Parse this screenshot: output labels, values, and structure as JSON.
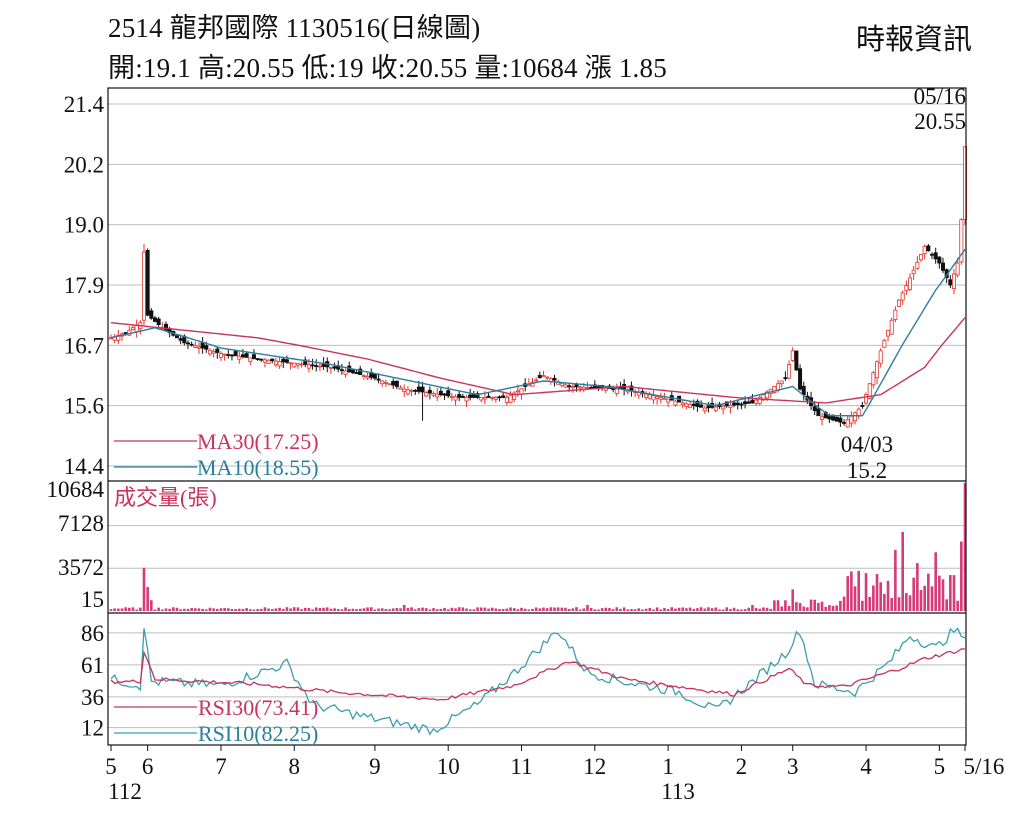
{
  "header": {
    "title": "2514  龍邦國際 1130516(日線圖)",
    "ohlc": "開:19.1 高:20.55 低:19 收:20.55 量:10684 漲 1.85",
    "source": "時報資訊"
  },
  "colors": {
    "up": "#e8332a",
    "down": "#111111",
    "ma30": "#c8335f",
    "ma10": "#2a7f9e",
    "volume": "#d63a78",
    "rsi30": "#c8335f",
    "rsi10": "#3b9eb0",
    "grid": "#bdbdbd"
  },
  "chart_data": [
    {
      "type": "candlestick",
      "title": "2514 龍邦國際 1130516(日線圖)",
      "ylim": [
        14.4,
        21.4
      ],
      "yticks": [
        "21.4",
        "20.2",
        "19.0",
        "17.9",
        "16.7",
        "15.6",
        "14.4"
      ],
      "ytick_values": [
        21.4,
        20.2,
        19.0,
        17.9,
        16.7,
        15.6,
        14.4
      ],
      "last_bar": {
        "date": "05/16",
        "open": 19.1,
        "high": 20.55,
        "low": 19,
        "close": 20.55,
        "volume": 10684,
        "change": 1.85
      },
      "annotations": [
        {
          "date_text": "05/16",
          "value_text": "20.55",
          "kind": "high"
        },
        {
          "date_text": "04/03",
          "value_text": "15.2",
          "kind": "low"
        }
      ],
      "ma30_label": "MA30(17.25)",
      "ma10_label": "MA10(18.55)",
      "ma30_last": 17.25,
      "ma10_last": 18.55,
      "price_keypoints": [
        {
          "i": 0,
          "p": 16.85
        },
        {
          "i": 4,
          "p": 16.95
        },
        {
          "i": 8,
          "p": 17.15
        },
        {
          "i": 9,
          "p": 18.5
        },
        {
          "i": 10,
          "p": 17.3
        },
        {
          "i": 14,
          "p": 17.05
        },
        {
          "i": 20,
          "p": 16.75
        },
        {
          "i": 30,
          "p": 16.55
        },
        {
          "i": 40,
          "p": 16.45
        },
        {
          "i": 60,
          "p": 16.3
        },
        {
          "i": 72,
          "p": 16.1
        },
        {
          "i": 80,
          "p": 15.9
        },
        {
          "i": 95,
          "p": 15.75
        },
        {
          "i": 108,
          "p": 15.75
        },
        {
          "i": 118,
          "p": 16.15
        },
        {
          "i": 125,
          "p": 15.95
        },
        {
          "i": 140,
          "p": 15.9
        },
        {
          "i": 150,
          "p": 15.75
        },
        {
          "i": 162,
          "p": 15.55
        },
        {
          "i": 175,
          "p": 15.65
        },
        {
          "i": 184,
          "p": 16.1
        },
        {
          "i": 186,
          "p": 16.6
        },
        {
          "i": 188,
          "p": 15.9
        },
        {
          "i": 193,
          "p": 15.4
        },
        {
          "i": 200,
          "p": 15.25
        },
        {
          "i": 205,
          "p": 15.6
        },
        {
          "i": 210,
          "p": 16.6
        },
        {
          "i": 215,
          "p": 17.6
        },
        {
          "i": 222,
          "p": 18.6
        },
        {
          "i": 226,
          "p": 18.3
        },
        {
          "i": 229,
          "p": 17.9
        },
        {
          "i": 231,
          "p": 18.3
        },
        {
          "i": 232,
          "p": 19.1
        },
        {
          "i": 233,
          "p": 20.55
        }
      ],
      "ma30_keypoints": [
        {
          "i": 0,
          "p": 17.15
        },
        {
          "i": 40,
          "p": 16.85
        },
        {
          "i": 70,
          "p": 16.45
        },
        {
          "i": 90,
          "p": 16.1
        },
        {
          "i": 110,
          "p": 15.8
        },
        {
          "i": 140,
          "p": 15.95
        },
        {
          "i": 170,
          "p": 15.75
        },
        {
          "i": 195,
          "p": 15.65
        },
        {
          "i": 210,
          "p": 15.8
        },
        {
          "i": 222,
          "p": 16.3
        },
        {
          "i": 233,
          "p": 17.25
        }
      ],
      "ma10_keypoints": [
        {
          "i": 0,
          "p": 16.85
        },
        {
          "i": 12,
          "p": 17.05
        },
        {
          "i": 30,
          "p": 16.65
        },
        {
          "i": 60,
          "p": 16.35
        },
        {
          "i": 100,
          "p": 15.8
        },
        {
          "i": 118,
          "p": 16.05
        },
        {
          "i": 135,
          "p": 15.95
        },
        {
          "i": 165,
          "p": 15.6
        },
        {
          "i": 186,
          "p": 15.95
        },
        {
          "i": 196,
          "p": 15.4
        },
        {
          "i": 205,
          "p": 15.4
        },
        {
          "i": 215,
          "p": 16.6
        },
        {
          "i": 225,
          "p": 17.8
        },
        {
          "i": 233,
          "p": 18.55
        }
      ]
    },
    {
      "type": "bar",
      "title": "成交量(張)",
      "yticks": [
        "10684",
        "7128",
        "3572",
        "15"
      ],
      "ytick_values": [
        10684,
        7128,
        3572,
        15
      ],
      "ylim": [
        0,
        10684
      ],
      "volume_keypoints": [
        {
          "i": 9,
          "v": 3600
        },
        {
          "i": 10,
          "v": 2000
        },
        {
          "i": 11,
          "v": 900
        },
        {
          "i": 80,
          "v": 500
        },
        {
          "i": 130,
          "v": 500
        },
        {
          "i": 175,
          "v": 500
        },
        {
          "i": 182,
          "v": 900
        },
        {
          "i": 186,
          "v": 1800
        },
        {
          "i": 200,
          "v": 1200
        },
        {
          "i": 210,
          "v": 2400
        },
        {
          "i": 214,
          "v": 5100
        },
        {
          "i": 216,
          "v": 6600
        },
        {
          "i": 220,
          "v": 4000
        },
        {
          "i": 225,
          "v": 4900
        },
        {
          "i": 229,
          "v": 3000
        },
        {
          "i": 232,
          "v": 5800
        },
        {
          "i": 233,
          "v": 10684
        }
      ]
    },
    {
      "type": "line",
      "title": "RSI",
      "yticks": [
        "86",
        "61",
        "36",
        "12"
      ],
      "ytick_values": [
        86,
        61,
        36,
        12
      ],
      "ylim": [
        0,
        100
      ],
      "series": [
        {
          "name": "RSI30(73.41)",
          "last": 73.41,
          "keypoints": [
            {
              "i": 0,
              "v": 48
            },
            {
              "i": 8,
              "v": 48
            },
            {
              "i": 9,
              "v": 72
            },
            {
              "i": 12,
              "v": 50
            },
            {
              "i": 40,
              "v": 46
            },
            {
              "i": 60,
              "v": 40
            },
            {
              "i": 90,
              "v": 34
            },
            {
              "i": 110,
              "v": 45
            },
            {
              "i": 125,
              "v": 64
            },
            {
              "i": 140,
              "v": 50
            },
            {
              "i": 155,
              "v": 44
            },
            {
              "i": 170,
              "v": 38
            },
            {
              "i": 185,
              "v": 58
            },
            {
              "i": 190,
              "v": 45
            },
            {
              "i": 200,
              "v": 44
            },
            {
              "i": 215,
              "v": 58
            },
            {
              "i": 222,
              "v": 66
            },
            {
              "i": 233,
              "v": 73.41
            }
          ]
        },
        {
          "name": "RSI10(82.25)",
          "last": 82.25,
          "keypoints": [
            {
              "i": 0,
              "v": 50
            },
            {
              "i": 8,
              "v": 45
            },
            {
              "i": 9,
              "v": 92
            },
            {
              "i": 11,
              "v": 48
            },
            {
              "i": 30,
              "v": 45
            },
            {
              "i": 48,
              "v": 62
            },
            {
              "i": 55,
              "v": 30
            },
            {
              "i": 70,
              "v": 20
            },
            {
              "i": 88,
              "v": 10
            },
            {
              "i": 100,
              "v": 30
            },
            {
              "i": 110,
              "v": 55
            },
            {
              "i": 122,
              "v": 88
            },
            {
              "i": 130,
              "v": 55
            },
            {
              "i": 140,
              "v": 48
            },
            {
              "i": 155,
              "v": 40
            },
            {
              "i": 165,
              "v": 25
            },
            {
              "i": 175,
              "v": 48
            },
            {
              "i": 184,
              "v": 70
            },
            {
              "i": 188,
              "v": 88
            },
            {
              "i": 192,
              "v": 46
            },
            {
              "i": 203,
              "v": 40
            },
            {
              "i": 212,
              "v": 62
            },
            {
              "i": 218,
              "v": 84
            },
            {
              "i": 225,
              "v": 74
            },
            {
              "i": 230,
              "v": 88
            },
            {
              "i": 233,
              "v": 82.25
            }
          ]
        }
      ]
    }
  ],
  "xaxis": {
    "n_bars": 234,
    "ticks": [
      {
        "label": "5",
        "i": 0
      },
      {
        "label": "6",
        "i": 10
      },
      {
        "label": "7",
        "i": 30
      },
      {
        "label": "8",
        "i": 50
      },
      {
        "label": "9",
        "i": 72
      },
      {
        "label": "10",
        "i": 92
      },
      {
        "label": "11",
        "i": 112
      },
      {
        "label": "12",
        "i": 132
      },
      {
        "label": "1",
        "i": 152
      },
      {
        "label": "2",
        "i": 172
      },
      {
        "label": "3",
        "i": 186
      },
      {
        "label": "4",
        "i": 206
      },
      {
        "label": "5",
        "i": 226
      },
      {
        "label": "5/16",
        "i": 233
      }
    ],
    "year_labels": [
      {
        "label": "112",
        "i": 0
      },
      {
        "label": "113",
        "i": 152
      }
    ]
  }
}
